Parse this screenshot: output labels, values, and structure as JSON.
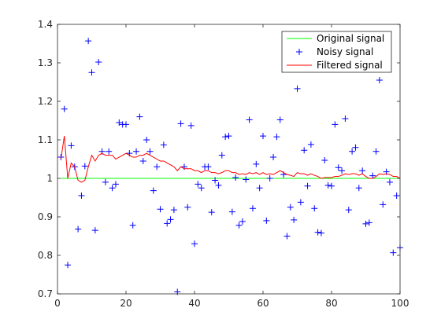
{
  "chart_data": {
    "type": "scatter",
    "title": "",
    "xlabel": "",
    "ylabel": "",
    "xlim": [
      0,
      100
    ],
    "ylim": [
      0.7,
      1.4
    ],
    "xticks": [
      0,
      20,
      40,
      60,
      80,
      100
    ],
    "yticks": [
      0.7,
      0.8,
      0.9,
      1,
      1.1,
      1.2,
      1.3,
      1.4
    ],
    "xtick_labels": [
      "0",
      "20",
      "40",
      "60",
      "80",
      "100"
    ],
    "ytick_labels": [
      "0.7",
      "0.8",
      "0.9",
      "1",
      "1.1",
      "1.2",
      "1.3",
      "1.4"
    ],
    "grid": false,
    "legend_position": "top-right",
    "series": [
      {
        "name": "Original signal",
        "style": "line",
        "color": "#00ff00",
        "x": [
          1,
          100
        ],
        "y": [
          1.0,
          1.0
        ]
      },
      {
        "name": "Noisy signal",
        "style": "marker-plus",
        "color": "#0000ff",
        "x": [
          1,
          2,
          3,
          4,
          5,
          6,
          7,
          8,
          9,
          10,
          11,
          12,
          13,
          14,
          15,
          16,
          17,
          18,
          19,
          20,
          21,
          22,
          23,
          24,
          25,
          26,
          27,
          28,
          29,
          30,
          31,
          32,
          33,
          34,
          35,
          36,
          37,
          38,
          39,
          40,
          41,
          42,
          43,
          44,
          45,
          46,
          47,
          48,
          49,
          50,
          51,
          52,
          53,
          54,
          55,
          56,
          57,
          58,
          59,
          60,
          61,
          62,
          63,
          64,
          65,
          66,
          67,
          68,
          69,
          70,
          71,
          72,
          73,
          74,
          75,
          76,
          77,
          78,
          79,
          80,
          81,
          82,
          83,
          84,
          85,
          86,
          87,
          88,
          89,
          90,
          91,
          92,
          93,
          94,
          95,
          96,
          97,
          98,
          99,
          100
        ],
        "y": [
          1.055,
          1.18,
          0.775,
          1.085,
          1.03,
          0.868,
          0.955,
          1.032,
          1.357,
          1.275,
          0.865,
          1.302,
          1.07,
          0.99,
          1.07,
          0.975,
          0.985,
          1.145,
          1.14,
          1.14,
          1.065,
          0.878,
          1.07,
          1.16,
          1.045,
          1.1,
          1.07,
          0.968,
          1.03,
          0.92,
          1.087,
          0.883,
          0.893,
          0.918,
          0.705,
          1.142,
          1.03,
          0.925,
          1.137,
          0.83,
          0.985,
          0.975,
          1.03,
          1.03,
          0.912,
          0.995,
          0.982,
          1.06,
          1.108,
          1.11,
          0.913,
          1.002,
          0.878,
          0.888,
          0.997,
          1.152,
          0.922,
          1.037,
          0.975,
          1.11,
          0.89,
          1.0,
          1.055,
          1.108,
          1.152,
          1.01,
          0.85,
          0.925,
          0.892,
          1.233,
          0.938,
          1.073,
          0.98,
          1.088,
          0.922,
          0.86,
          0.858,
          1.047,
          0.982,
          0.98,
          1.14,
          1.028,
          1.02,
          1.155,
          0.918,
          1.07,
          1.08,
          0.975,
          1.02,
          0.882,
          0.885,
          1.007,
          1.07,
          1.255,
          0.932,
          1.017,
          0.99,
          0.807,
          0.955,
          0.82
        ]
      },
      {
        "name": "Filtered signal",
        "style": "line",
        "color": "#ff0000",
        "x": [
          1,
          2,
          3,
          4,
          5,
          6,
          7,
          8,
          9,
          10,
          11,
          12,
          13,
          14,
          15,
          16,
          17,
          18,
          19,
          20,
          21,
          22,
          23,
          24,
          25,
          26,
          27,
          28,
          29,
          30,
          31,
          32,
          33,
          34,
          35,
          36,
          37,
          38,
          39,
          40,
          41,
          42,
          43,
          44,
          45,
          46,
          47,
          48,
          49,
          50,
          51,
          52,
          53,
          54,
          55,
          56,
          57,
          58,
          59,
          60,
          61,
          62,
          63,
          64,
          65,
          66,
          67,
          68,
          69,
          70,
          71,
          72,
          73,
          74,
          75,
          76,
          77,
          78,
          79,
          80,
          81,
          82,
          83,
          84,
          85,
          86,
          87,
          88,
          89,
          90,
          91,
          92,
          93,
          94,
          95,
          96,
          97,
          98,
          99,
          100
        ],
        "y": [
          1.05,
          1.11,
          1.0,
          1.04,
          1.03,
          0.995,
          0.99,
          0.995,
          1.03,
          1.06,
          1.045,
          1.06,
          1.065,
          1.06,
          1.06,
          1.06,
          1.05,
          1.055,
          1.06,
          1.065,
          1.06,
          1.055,
          1.055,
          1.06,
          1.06,
          1.065,
          1.06,
          1.055,
          1.05,
          1.045,
          1.045,
          1.04,
          1.035,
          1.03,
          1.02,
          1.03,
          1.025,
          1.025,
          1.025,
          1.02,
          1.02,
          1.015,
          1.02,
          1.02,
          1.015,
          1.015,
          1.012,
          1.015,
          1.02,
          1.02,
          1.015,
          1.015,
          1.01,
          1.012,
          1.01,
          1.015,
          1.012,
          1.015,
          1.01,
          1.015,
          1.01,
          1.012,
          1.01,
          1.015,
          1.02,
          1.015,
          1.01,
          1.008,
          1.005,
          1.015,
          1.012,
          1.012,
          1.008,
          1.012,
          1.008,
          1.005,
          1.0,
          1.002,
          1.002,
          1.002,
          1.005,
          1.005,
          1.008,
          1.012,
          1.01,
          1.012,
          1.012,
          1.008,
          1.012,
          1.005,
          1.0,
          1.0,
          1.005,
          1.012,
          1.01,
          1.012,
          1.01,
          1.005,
          1.005,
          1.0
        ]
      }
    ]
  }
}
